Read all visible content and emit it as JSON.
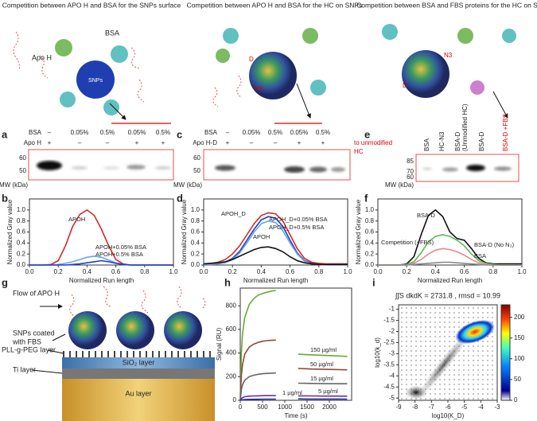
{
  "panels": {
    "letters": [
      "a",
      "b",
      "c",
      "d",
      "e",
      "f",
      "g",
      "h",
      "i"
    ]
  },
  "headers": [
    "Competition between APO H and BSA for the SNPs surface",
    "Competition between APO H and BSA for the HC on SNPs",
    "Competition between BSA and FBS proteins for the HC on SNPs"
  ],
  "schematic": {
    "apo_h": "Apo H",
    "bsa": "BSA",
    "snps": "SNPs",
    "d": "D",
    "n3": "N3"
  },
  "gel_a": {
    "rows": [
      {
        "label": "BSA",
        "cells": [
          "–",
          "0.05%",
          "0.5%",
          "0.05%",
          "0.5%"
        ]
      },
      {
        "label": "Apo H",
        "cells": [
          "+",
          "–",
          "–",
          "+",
          "+"
        ]
      }
    ],
    "mw": [
      "60",
      "50"
    ],
    "mw_label": "MW (kDa)"
  },
  "gel_c": {
    "rows": [
      {
        "label": "BSA",
        "cells": [
          "–",
          "0.05%",
          "0.5%",
          "0.05%",
          "0.5%"
        ]
      },
      {
        "label": "Apo H-D",
        "cells": [
          "+",
          "–",
          "–",
          "+",
          "+"
        ]
      }
    ],
    "note": [
      "to unmodified",
      "HC"
    ],
    "mw": [
      "60",
      "50"
    ],
    "mw_label": "MW (kDa)"
  },
  "gel_e": {
    "lanes": [
      "BSA",
      "HC-N3",
      "BSA-D",
      "(Unmodified HC)",
      "BSA-D",
      "BSA-D +FBS"
    ],
    "mw": [
      "85",
      "70",
      "60"
    ],
    "mw_label": "MW (kDa)"
  },
  "diagram_g": {
    "flow": "Flow of APO H",
    "snps": [
      "SNPs coated",
      "with FBS"
    ],
    "peg": "PLL-g-PEG layer",
    "sio2": "SiO₂ layer",
    "ti": "Ti layer",
    "au": "Au layer"
  },
  "chart_data": [
    {
      "type": "line",
      "x_label": "Normalized Run length",
      "y_label": "Normalized Gray value",
      "xlim": [
        0,
        1
      ],
      "ylim": [
        0,
        1.2
      ],
      "xticks": [
        {
          "value": 0,
          "label": "0.0"
        },
        {
          "value": 0.2,
          "label": "0.2"
        },
        {
          "value": 0.4,
          "label": "0.4"
        },
        {
          "value": 0.6,
          "label": "0.6"
        },
        {
          "value": 0.8,
          "label": "0.8"
        },
        {
          "value": 1,
          "label": "1.0"
        }
      ],
      "yticks": [
        {
          "value": 0,
          "label": "0.0"
        },
        {
          "value": 0.2,
          "label": "0.2"
        },
        {
          "value": 0.4,
          "label": "0.4"
        },
        {
          "value": 0.6,
          "label": "0.6"
        },
        {
          "value": 0.8,
          "label": "0.8"
        },
        {
          "value": 1,
          "label": "1.0"
        }
      ],
      "x": [
        0,
        0.05,
        0.1,
        0.15,
        0.2,
        0.25,
        0.3,
        0.35,
        0.4,
        0.45,
        0.5,
        0.55,
        0.6,
        0.65,
        0.7,
        0.75,
        0.8,
        0.85,
        0.9,
        0.95,
        1
      ],
      "series": [
        {
          "name": "APOH",
          "color": "#d62728",
          "values": [
            0,
            0,
            0,
            0.01,
            0.08,
            0.35,
            0.7,
            0.92,
            1.0,
            0.9,
            0.65,
            0.35,
            0.1,
            0.02,
            0,
            0,
            0,
            0,
            0,
            0,
            0
          ]
        },
        {
          "name": "APOH+0.05% BSA",
          "color": "#6aa6e8",
          "values": [
            0,
            0,
            0,
            0,
            0.01,
            0.03,
            0.06,
            0.1,
            0.14,
            0.16,
            0.14,
            0.09,
            0.04,
            0.01,
            0,
            0,
            0,
            0,
            0,
            0,
            0
          ]
        },
        {
          "name": "APOH+0.5% BSA",
          "color": "#2040c0",
          "values": [
            0,
            0,
            0,
            0,
            0,
            0,
            0.01,
            0.02,
            0.04,
            0.06,
            0.08,
            0.06,
            0.03,
            0.01,
            0,
            0,
            0,
            0,
            0,
            0,
            0
          ]
        }
      ]
    },
    {
      "type": "line",
      "x_label": "Normalized Run length",
      "y_label": "Normalized Gray value",
      "xlim": [
        0,
        1
      ],
      "ylim": [
        0,
        1.2
      ],
      "xticks": [
        {
          "value": 0,
          "label": "0.0"
        },
        {
          "value": 0.2,
          "label": "0.2"
        },
        {
          "value": 0.4,
          "label": "0.4"
        },
        {
          "value": 0.6,
          "label": "0.6"
        },
        {
          "value": 0.8,
          "label": "0.8"
        },
        {
          "value": 1,
          "label": "1.0"
        }
      ],
      "yticks": [
        {
          "value": 0,
          "label": "0.0"
        },
        {
          "value": 0.2,
          "label": "0.2"
        },
        {
          "value": 0.4,
          "label": "0.4"
        },
        {
          "value": 0.6,
          "label": "0.6"
        },
        {
          "value": 0.8,
          "label": "0.8"
        },
        {
          "value": 1,
          "label": "1.0"
        }
      ],
      "x": [
        0,
        0.05,
        0.1,
        0.15,
        0.2,
        0.25,
        0.3,
        0.35,
        0.4,
        0.45,
        0.5,
        0.55,
        0.6,
        0.65,
        0.7,
        0.75,
        0.8,
        0.85,
        0.9,
        0.95,
        1
      ],
      "series": [
        {
          "name": "APOH_D",
          "color": "#d62728",
          "values": [
            0.02,
            0.03,
            0.05,
            0.1,
            0.2,
            0.35,
            0.55,
            0.75,
            0.9,
            0.95,
            0.93,
            0.8,
            0.55,
            0.3,
            0.12,
            0.05,
            0.03,
            0.02,
            0.02,
            0.02,
            0.02
          ]
        },
        {
          "name": "APOH_D+0.05% BSA",
          "color": "#2040c0",
          "values": [
            0.01,
            0.02,
            0.03,
            0.05,
            0.12,
            0.25,
            0.45,
            0.65,
            0.82,
            0.88,
            0.85,
            0.7,
            0.45,
            0.22,
            0.08,
            0.03,
            0.01,
            0.01,
            0.01,
            0.01,
            0.01
          ]
        },
        {
          "name": "APOH_D+0.5% BSA",
          "color": "#6aa6e8",
          "values": [
            0.01,
            0.01,
            0.02,
            0.04,
            0.1,
            0.22,
            0.4,
            0.6,
            0.75,
            0.8,
            0.77,
            0.62,
            0.4,
            0.2,
            0.07,
            0.02,
            0.01,
            0,
            0,
            0,
            0
          ]
        },
        {
          "name": "APOH",
          "color": "#111111",
          "values": [
            0.02,
            0.03,
            0.04,
            0.06,
            0.1,
            0.16,
            0.22,
            0.28,
            0.32,
            0.33,
            0.3,
            0.24,
            0.15,
            0.08,
            0.04,
            0.02,
            0.01,
            0.01,
            0.01,
            0.01,
            0.01
          ]
        }
      ]
    },
    {
      "type": "line",
      "x_label": "Normalized Run length",
      "y_label": "Normalized Gray value",
      "xlim": [
        0,
        1
      ],
      "ylim": [
        0,
        1.2
      ],
      "xticks": [
        {
          "value": 0,
          "label": "0.0"
        },
        {
          "value": 0.2,
          "label": "0.2"
        },
        {
          "value": 0.4,
          "label": "0.4"
        },
        {
          "value": 0.6,
          "label": "0.6"
        },
        {
          "value": 0.8,
          "label": "0.8"
        },
        {
          "value": 1,
          "label": "1.0"
        }
      ],
      "yticks": [
        {
          "value": 0,
          "label": "0.0"
        },
        {
          "value": 0.2,
          "label": "0.2"
        },
        {
          "value": 0.4,
          "label": "0.4"
        },
        {
          "value": 0.6,
          "label": "0.6"
        },
        {
          "value": 0.8,
          "label": "0.8"
        },
        {
          "value": 1,
          "label": "1.0"
        }
      ],
      "x": [
        0,
        0.05,
        0.1,
        0.15,
        0.2,
        0.25,
        0.3,
        0.35,
        0.4,
        0.45,
        0.5,
        0.55,
        0.6,
        0.65,
        0.7,
        0.75,
        0.8,
        0.85,
        0.9,
        0.95,
        1
      ],
      "series": [
        {
          "name": "BSA-D",
          "color": "#111111",
          "values": [
            0,
            0,
            0,
            0,
            0.02,
            0.15,
            0.55,
            0.9,
            1.0,
            0.88,
            0.6,
            0.48,
            0.45,
            0.3,
            0.12,
            0.04,
            0.02,
            0.02,
            0.02,
            0.02,
            0.02
          ]
        },
        {
          "name": "Competition (+FBS)",
          "color": "#5cb85c",
          "values": [
            0,
            0,
            0,
            0,
            0.01,
            0.06,
            0.22,
            0.42,
            0.52,
            0.55,
            0.52,
            0.45,
            0.35,
            0.2,
            0.08,
            0.03,
            0.01,
            0,
            0,
            0,
            0
          ]
        },
        {
          "name": "BSA-D (No N₃)",
          "color": "#e88a8a",
          "values": [
            0,
            0,
            0,
            0,
            0,
            0.03,
            0.1,
            0.2,
            0.27,
            0.3,
            0.28,
            0.24,
            0.18,
            0.1,
            0.04,
            0.01,
            0,
            0,
            0,
            0,
            0
          ]
        },
        {
          "name": "BSA",
          "color": "#888888",
          "values": [
            0,
            0,
            0,
            0,
            0,
            0.01,
            0.02,
            0.03,
            0.04,
            0.05,
            0.05,
            0.04,
            0.03,
            0.02,
            0.01,
            0,
            0,
            0,
            0,
            0,
            0
          ]
        }
      ]
    },
    {
      "type": "line",
      "x_label": "Time (s)",
      "y_label": "Signal (RU)",
      "xlim": [
        0,
        2500
      ],
      "ylim": [
        0,
        950
      ],
      "xticks": [
        0,
        500,
        1000,
        1500,
        2000
      ],
      "yticks": [
        0,
        200,
        400,
        600,
        800
      ],
      "x": [
        0,
        25,
        50,
        100,
        200,
        300,
        400,
        500,
        600,
        700,
        800,
        1050,
        1300,
        1600,
        1900,
        2200,
        2400
      ],
      "series": [
        {
          "name": "150 µg/ml",
          "color": "#66aa33",
          "values": [
            0,
            400,
            560,
            700,
            810,
            860,
            890,
            905,
            915,
            925,
            930,
            null,
            390,
            385,
            380,
            375,
            372
          ]
        },
        {
          "name": "50 µg/ml",
          "color": "#8b4a3a",
          "values": [
            0,
            210,
            300,
            390,
            450,
            475,
            490,
            500,
            505,
            508,
            510,
            null,
            270,
            265,
            262,
            260,
            258
          ]
        },
        {
          "name": "15 µg/ml",
          "color": "#666666",
          "values": [
            0,
            90,
            130,
            170,
            200,
            212,
            220,
            225,
            228,
            230,
            232,
            null,
            145,
            143,
            141,
            140,
            140
          ]
        },
        {
          "name": "5 µg/ml",
          "color": "#663399",
          "values": [
            0,
            15,
            22,
            30,
            35,
            37,
            38,
            39,
            40,
            40,
            40,
            null,
            38,
            37,
            36,
            36,
            35
          ]
        },
        {
          "name": "1 µg/ml",
          "color": "#2233aa",
          "values": [
            0,
            3,
            5,
            7,
            8,
            9,
            9,
            10,
            10,
            10,
            10,
            null,
            12,
            11,
            11,
            11,
            10
          ]
        }
      ]
    },
    {
      "type": "heatmap",
      "title": "∫∫S dkdK = 2731.8 , rmsd = 10.99",
      "x_label": "log10(K_D)",
      "y_label": "log10(k_d)",
      "xlim": [
        -9,
        -3
      ],
      "ylim": [
        -5.1,
        -0.8
      ],
      "xticks": [
        -9,
        -8,
        -7,
        -6,
        -5,
        -4,
        -3
      ],
      "yticks": [
        -5,
        -4.5,
        -4,
        -3.5,
        -3,
        -2.5,
        -2,
        -1.5,
        -1
      ],
      "colorbar_lim": [
        0,
        230
      ],
      "colorbar_ticks": [
        0,
        50,
        100,
        150,
        200
      ]
    }
  ]
}
